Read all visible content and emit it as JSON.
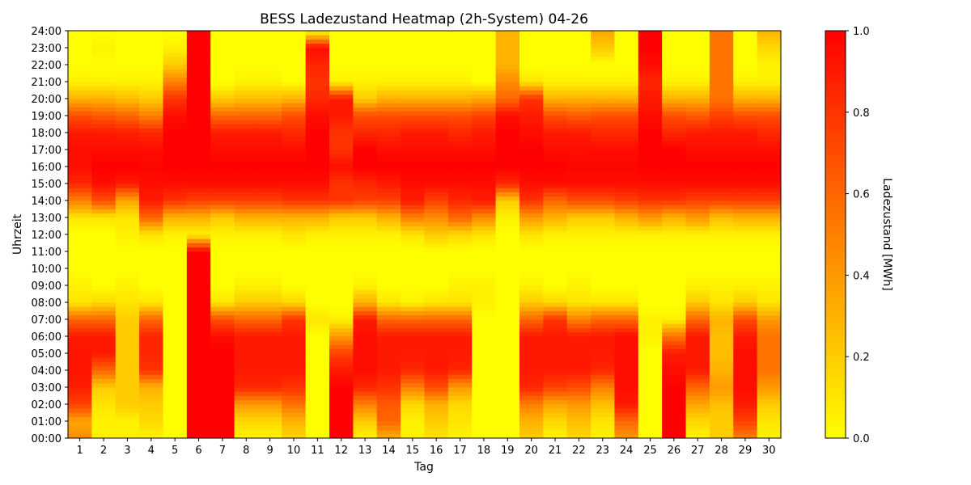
{
  "chart_data": {
    "type": "heatmap",
    "title": "BESS Ladezustand Heatmap (2h-System) 04-26",
    "xlabel": "Tag",
    "ylabel": "Uhrzeit",
    "x_categories": [
      "1",
      "2",
      "3",
      "4",
      "5",
      "6",
      "7",
      "8",
      "9",
      "10",
      "11",
      "12",
      "13",
      "14",
      "15",
      "16",
      "17",
      "18",
      "19",
      "20",
      "21",
      "22",
      "23",
      "24",
      "25",
      "26",
      "27",
      "28",
      "29",
      "30"
    ],
    "y_tick_labels": [
      "00:00",
      "01:00",
      "02:00",
      "03:00",
      "04:00",
      "05:00",
      "06:00",
      "07:00",
      "08:00",
      "09:00",
      "10:00",
      "11:00",
      "12:00",
      "13:00",
      "14:00",
      "15:00",
      "16:00",
      "17:00",
      "18:00",
      "19:00",
      "20:00",
      "21:00",
      "22:00",
      "23:00",
      "24:00"
    ],
    "y_range": [
      0,
      24
    ],
    "intervals_per_day": 96,
    "interval_minutes": 15,
    "colorbar": {
      "label": "Ladezustand [MWh]",
      "range": [
        0.0,
        1.0
      ],
      "ticks": [
        "0.0",
        "0.2",
        "0.4",
        "0.6",
        "0.8",
        "1.0"
      ],
      "colormap": "autumn_r",
      "color_min": "#ffff00",
      "color_max": "#ff0000"
    },
    "soc_profile_per_day_hourly_start_00_00": [
      [
        0.45,
        0.35,
        0.75,
        0.88,
        0.92,
        0.92,
        0.9,
        0.6,
        0.1,
        0.05,
        0,
        0,
        0,
        0.1,
        0.5,
        0.85,
        0.95,
        0.95,
        0.9,
        0.7,
        0.3,
        0.05,
        0,
        0,
        0
      ],
      [
        0.05,
        0.05,
        0.1,
        0.2,
        0.6,
        0.9,
        0.9,
        0.6,
        0.15,
        0,
        0,
        0,
        0,
        0.1,
        0.7,
        0.95,
        1,
        0.95,
        0.9,
        0.65,
        0.3,
        0.05,
        0,
        0.05,
        0
      ],
      [
        0.05,
        0.05,
        0.2,
        0.2,
        0.2,
        0.2,
        0.2,
        0.2,
        0.1,
        0.05,
        0,
        0,
        0.05,
        0.1,
        0.35,
        0.9,
        1,
        0.95,
        0.88,
        0.6,
        0.25,
        0.05,
        0,
        0,
        0
      ],
      [
        0.05,
        0.15,
        0.2,
        0.3,
        0.8,
        0.85,
        0.85,
        0.6,
        0.1,
        0,
        0,
        0,
        0.1,
        0.6,
        0.9,
        0.95,
        0.98,
        0.95,
        0.85,
        0.5,
        0.2,
        0.05,
        0,
        0,
        0
      ],
      [
        0,
        0,
        0,
        0,
        0,
        0,
        0,
        0,
        0,
        0,
        0,
        0,
        0.05,
        0.3,
        0.8,
        0.95,
        1,
        1,
        1,
        0.95,
        0.8,
        0.5,
        0.2,
        0.05,
        0
      ],
      [
        1,
        1,
        1,
        1,
        1,
        1,
        1,
        1,
        1,
        1,
        1,
        1,
        0.05,
        0.3,
        0.75,
        0.95,
        1,
        1,
        1,
        1,
        1,
        1,
        1,
        1,
        1
      ],
      [
        1,
        1,
        1,
        1,
        1,
        1,
        0.95,
        0.7,
        0.1,
        0,
        0,
        0,
        0.05,
        0.2,
        0.75,
        0.95,
        1,
        0.95,
        0.9,
        0.6,
        0.2,
        0,
        0,
        0,
        0
      ],
      [
        0.05,
        0.15,
        0.4,
        0.85,
        0.9,
        0.9,
        0.9,
        0.6,
        0.2,
        0.05,
        0,
        0,
        0.05,
        0.3,
        0.75,
        0.95,
        1,
        0.95,
        0.9,
        0.6,
        0.25,
        0.05,
        0,
        0,
        0
      ],
      [
        0.05,
        0.15,
        0.4,
        0.85,
        0.9,
        0.9,
        0.9,
        0.6,
        0.2,
        0.05,
        0,
        0,
        0.05,
        0.3,
        0.75,
        0.95,
        1,
        0.95,
        0.9,
        0.6,
        0.25,
        0.05,
        0,
        0,
        0
      ],
      [
        0.15,
        0.3,
        0.55,
        0.8,
        0.9,
        0.9,
        0.9,
        0.8,
        0.15,
        0,
        0,
        0,
        0.1,
        0.3,
        0.8,
        0.95,
        1,
        0.95,
        0.85,
        0.7,
        0.3,
        0,
        0,
        0,
        0
      ],
      [
        0,
        0,
        0,
        0,
        0,
        0,
        0,
        0.1,
        0,
        0,
        0,
        0,
        0.05,
        0.3,
        0.8,
        0.95,
        1,
        1,
        1,
        0.95,
        0.85,
        0.8,
        0.85,
        0.95,
        0
      ],
      [
        1,
        1,
        1,
        1,
        0.9,
        0.75,
        0.4,
        0.05,
        0,
        0,
        0,
        0,
        0.05,
        0.2,
        0.8,
        0.8,
        0.95,
        0.8,
        0.8,
        0.9,
        0.9,
        0.05,
        0,
        0,
        0
      ],
      [
        0.05,
        0.2,
        0.5,
        0.85,
        0.95,
        0.95,
        0.95,
        0.9,
        0.3,
        0.05,
        0,
        0,
        0.05,
        0.2,
        0.75,
        0.85,
        1,
        1,
        0.85,
        0.7,
        0.2,
        0.05,
        0,
        0,
        0
      ],
      [
        0.3,
        0.6,
        0.65,
        0.8,
        0.9,
        0.9,
        0.9,
        0.6,
        0.1,
        0,
        0,
        0,
        0.05,
        0.3,
        0.75,
        0.9,
        1,
        0.95,
        0.85,
        0.7,
        0.3,
        0.05,
        0,
        0,
        0
      ],
      [
        0.05,
        0.05,
        0.15,
        0.5,
        0.85,
        0.9,
        0.9,
        0.6,
        0.05,
        0,
        0,
        0,
        0.1,
        0.5,
        0.9,
        0.95,
        1,
        0.95,
        0.9,
        0.7,
        0.3,
        0.05,
        0,
        0,
        0
      ],
      [
        0.1,
        0.2,
        0.3,
        0.7,
        0.9,
        0.9,
        0.9,
        0.6,
        0.1,
        0,
        0,
        0,
        0.2,
        0.45,
        0.75,
        0.95,
        1,
        0.95,
        0.9,
        0.7,
        0.3,
        0.05,
        0,
        0,
        0
      ],
      [
        0.05,
        0.1,
        0.15,
        0.4,
        0.85,
        0.9,
        0.9,
        0.6,
        0.1,
        0.05,
        0,
        0,
        0.15,
        0.6,
        0.85,
        0.95,
        1,
        0.95,
        0.85,
        0.7,
        0.3,
        0.05,
        0,
        0,
        0
      ],
      [
        0,
        0,
        0,
        0,
        0,
        0,
        0,
        0,
        0.05,
        0.05,
        0,
        0,
        0.1,
        0.45,
        0.9,
        0.95,
        1,
        0.95,
        0.9,
        0.75,
        0.35,
        0,
        0,
        0,
        0
      ],
      [
        0,
        0,
        0,
        0,
        0,
        0,
        0,
        0,
        0,
        0,
        0,
        0,
        0,
        0.05,
        0.2,
        0.85,
        1,
        1,
        1,
        0.95,
        0.6,
        0.45,
        0.3,
        0.3,
        0.3
      ],
      [
        0.2,
        0.3,
        0.5,
        0.85,
        0.9,
        0.9,
        0.9,
        0.6,
        0.2,
        0.05,
        0,
        0,
        0.1,
        0.4,
        0.8,
        0.95,
        1,
        1,
        0.95,
        0.9,
        0.8,
        0.1,
        0,
        0,
        0
      ],
      [
        0.05,
        0.15,
        0.35,
        0.75,
        0.9,
        0.9,
        0.9,
        0.8,
        0.15,
        0,
        0,
        0,
        0.05,
        0.3,
        0.6,
        0.95,
        1,
        0.95,
        0.9,
        0.7,
        0.3,
        0.05,
        0,
        0,
        0
      ],
      [
        0.15,
        0.25,
        0.4,
        0.7,
        0.9,
        0.9,
        0.9,
        0.5,
        0.1,
        0.05,
        0,
        0,
        0.05,
        0.2,
        0.7,
        0.95,
        0.98,
        0.95,
        0.9,
        0.65,
        0.3,
        0.05,
        0,
        0,
        0
      ],
      [
        0.05,
        0.1,
        0.25,
        0.5,
        0.85,
        0.9,
        0.9,
        0.6,
        0.1,
        0,
        0,
        0,
        0.05,
        0.2,
        0.7,
        0.95,
        0.98,
        0.95,
        0.85,
        0.7,
        0.3,
        0.05,
        0,
        0.2,
        0.35
      ],
      [
        0.4,
        0.6,
        0.9,
        0.95,
        0.95,
        0.95,
        0.95,
        0.6,
        0.1,
        0,
        0,
        0,
        0.05,
        0.3,
        0.75,
        0.95,
        0.98,
        0.95,
        0.85,
        0.7,
        0.3,
        0.05,
        0,
        0,
        0
      ],
      [
        0,
        0,
        0,
        0,
        0,
        0,
        0.05,
        0.05,
        0,
        0,
        0,
        0,
        0.05,
        0.4,
        0.8,
        0.95,
        1,
        1,
        1,
        0.95,
        0.9,
        0.85,
        0.95,
        1,
        1
      ],
      [
        1,
        1,
        1,
        1,
        0.95,
        0.9,
        0.55,
        0.05,
        0,
        0,
        0,
        0,
        0.05,
        0.3,
        0.8,
        0.95,
        1,
        1,
        0.85,
        0.7,
        0.3,
        0.05,
        0,
        0,
        0
      ],
      [
        0.05,
        0.15,
        0.35,
        0.6,
        0.9,
        0.9,
        0.9,
        0.6,
        0.2,
        0.05,
        0,
        0,
        0.05,
        0.4,
        0.75,
        0.95,
        1,
        0.95,
        0.9,
        0.65,
        0.3,
        0.05,
        0,
        0,
        0
      ],
      [
        0.2,
        0.2,
        0.25,
        0.4,
        0.3,
        0.25,
        0.25,
        0.3,
        0.1,
        0.05,
        0,
        0,
        0.05,
        0.25,
        0.75,
        0.95,
        1,
        0.95,
        0.9,
        0.75,
        0.55,
        0.55,
        0.55,
        0.55,
        0.55
      ],
      [
        0.5,
        0.75,
        0.9,
        0.95,
        0.95,
        0.95,
        0.9,
        0.7,
        0.2,
        0.05,
        0,
        0,
        0.05,
        0.3,
        0.75,
        0.95,
        1,
        0.95,
        0.9,
        0.7,
        0.3,
        0.05,
        0,
        0,
        0
      ],
      [
        0.05,
        0.1,
        0.2,
        0.4,
        0.55,
        0.55,
        0.55,
        0.4,
        0.1,
        0.05,
        0,
        0,
        0.05,
        0.3,
        0.75,
        0.95,
        1,
        0.95,
        0.85,
        0.7,
        0.3,
        0.05,
        0.05,
        0.15,
        0.3
      ]
    ]
  }
}
